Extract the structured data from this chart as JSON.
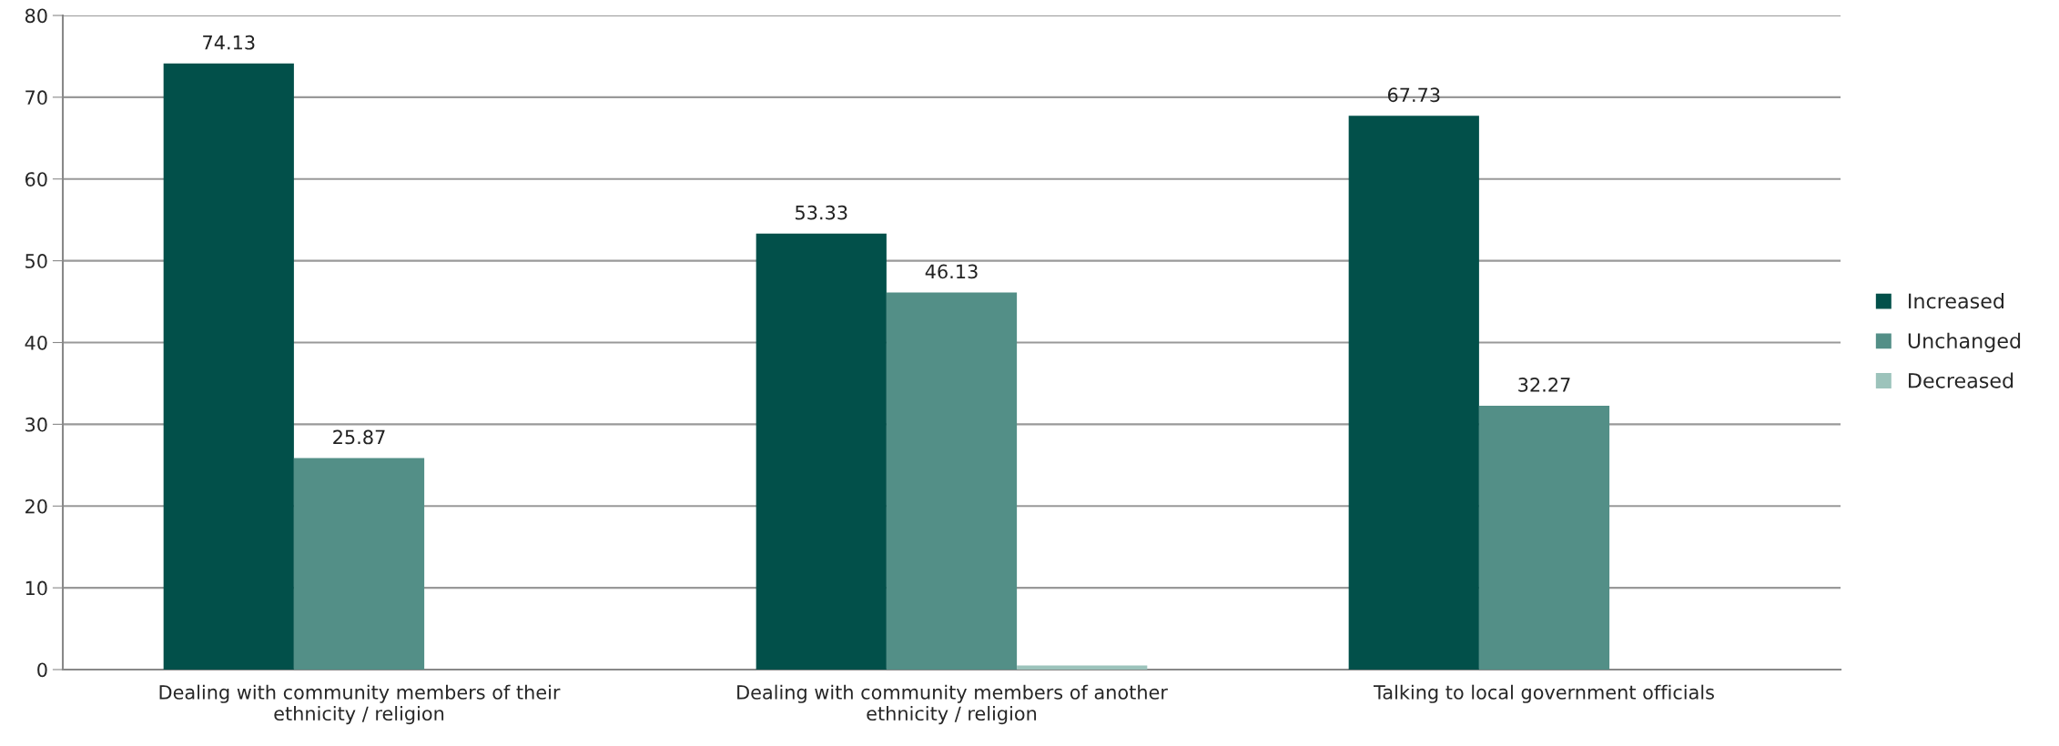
{
  "chart_data": {
    "type": "bar",
    "categories": [
      "Dealing with community members of their\nethnicity / religion",
      "Dealing with community members of another\nethnicity / religion",
      "Talking to local government officials"
    ],
    "series": [
      {
        "name": "Increased",
        "color": "#02504a",
        "values": [
          74.13,
          53.33,
          67.73
        ],
        "value_labels": [
          "74.13",
          "53.33",
          "67.73"
        ]
      },
      {
        "name": "Unchanged",
        "color": "#538f87",
        "values": [
          25.87,
          46.13,
          32.27
        ],
        "value_labels": [
          "25.87",
          "46.13",
          "32.27"
        ]
      },
      {
        "name": "Decreased",
        "color": "#9cc3bb",
        "values": [
          null,
          0.5,
          null
        ],
        "value_labels": [
          null,
          null,
          null
        ]
      }
    ],
    "ylim": [
      0,
      80
    ],
    "yticks": [
      0,
      10,
      20,
      30,
      40,
      50,
      60,
      70,
      80
    ],
    "grid": "y",
    "legend": "right"
  }
}
